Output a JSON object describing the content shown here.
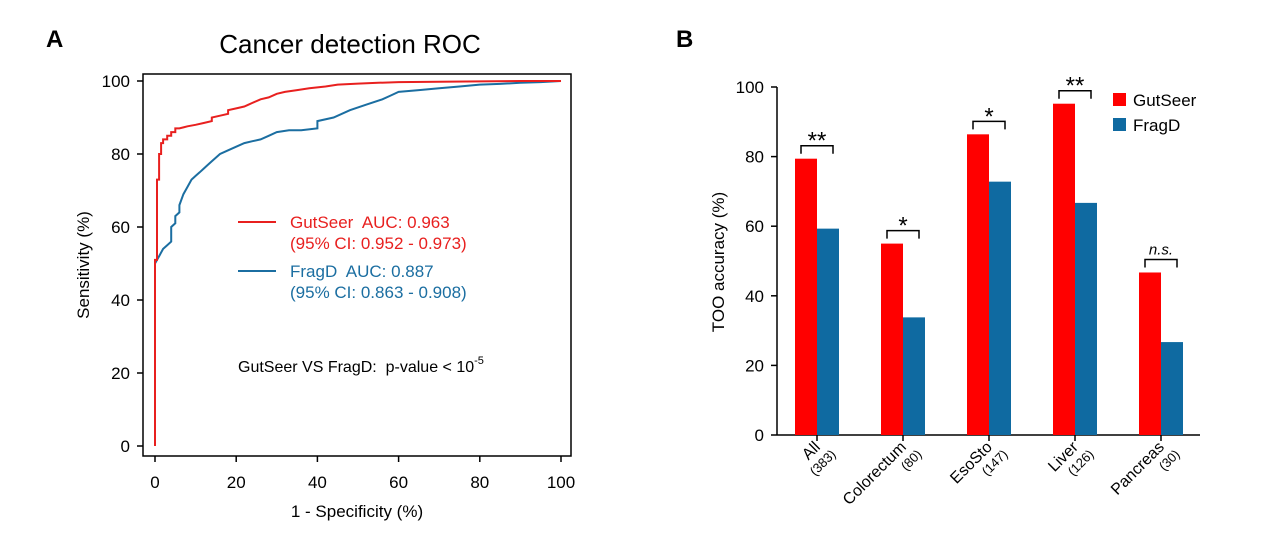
{
  "panels": {
    "a_letter": "A",
    "b_letter": "B"
  },
  "chart_data": [
    {
      "type": "line",
      "title": "Cancer detection ROC",
      "xlabel": "1 - Specificity (%)",
      "ylabel": "Sensitivity (%)",
      "xlim": [
        0,
        100
      ],
      "ylim": [
        0,
        100
      ],
      "xticks": [
        "0",
        "20",
        "40",
        "60",
        "80",
        "100"
      ],
      "yticks": [
        "0",
        "20",
        "40",
        "60",
        "80",
        "100"
      ],
      "grid": false,
      "series": [
        {
          "name": "GutSeer",
          "color": "#e8201f",
          "legend_label": "GutSeer  AUC: 0.963",
          "legend_ci": "(95% CI: 0.952 - 0.973)",
          "x": [
            0,
            0,
            0.5,
            0.5,
            1,
            1,
            1.5,
            1.5,
            2,
            2,
            3,
            3,
            4,
            4,
            5,
            5,
            6,
            7,
            8,
            10,
            12,
            14,
            14,
            16,
            18,
            18,
            20,
            22,
            23,
            24,
            26,
            28,
            30,
            32,
            35,
            38,
            42,
            45,
            50,
            55,
            60,
            70,
            80,
            90,
            100
          ],
          "y": [
            0,
            51,
            51,
            73,
            73,
            80,
            80,
            83,
            83,
            84,
            84,
            85,
            85,
            86,
            86,
            87,
            87,
            87.3,
            87.6,
            88,
            88.5,
            89,
            90,
            90.5,
            91,
            92,
            92.5,
            93,
            93.5,
            94,
            95,
            95.5,
            96.5,
            97,
            97.5,
            98,
            98.5,
            99,
            99.3,
            99.5,
            99.7,
            99.8,
            99.9,
            100,
            100
          ]
        },
        {
          "name": "FragD",
          "color": "#1b6ea1",
          "legend_label": "FragD  AUC: 0.887",
          "legend_ci": "(95% CI: 0.863 - 0.908)",
          "x": [
            0,
            0,
            0.5,
            1,
            2,
            3,
            4,
            4,
            5,
            5,
            6,
            6,
            7,
            8,
            9,
            10,
            11,
            12,
            13,
            14,
            15,
            16,
            18,
            20,
            22,
            24,
            26,
            28,
            30,
            33,
            36,
            40,
            40,
            44,
            48,
            52,
            56,
            58,
            60,
            65,
            70,
            75,
            80,
            85,
            90,
            95,
            100
          ],
          "y": [
            0,
            50,
            51,
            52,
            54,
            55,
            56,
            60,
            61,
            63,
            64,
            66,
            69,
            71,
            73,
            74,
            75,
            76,
            77,
            78,
            79,
            80,
            81,
            82,
            83,
            83.5,
            84,
            85,
            86,
            86.5,
            86.5,
            87,
            89,
            90,
            92,
            93.5,
            95,
            96,
            97,
            97.5,
            98,
            98.5,
            99,
            99.2,
            99.5,
            99.7,
            100
          ]
        }
      ],
      "annotation": {
        "text": "GutSeer VS FragD:  p-value < 10",
        "superscript": "-5"
      }
    },
    {
      "type": "bar",
      "xlabel": "",
      "ylabel": "TOO accuracy (%)",
      "ylim": [
        0,
        100
      ],
      "yticks": [
        "0",
        "20",
        "40",
        "60",
        "80",
        "100"
      ],
      "grid": false,
      "legend_position": "top-right",
      "categories": [
        "All",
        "Colorectum",
        "EsoSto",
        "Liver",
        "Pancreas"
      ],
      "category_counts": [
        "(383)",
        "(80)",
        "(147)",
        "(126)",
        "(30)"
      ],
      "series": [
        {
          "name": "GutSeer",
          "color": "#ff0000",
          "values": [
            79.4,
            55,
            86.4,
            95.2,
            46.7
          ]
        },
        {
          "name": "FragD",
          "color": "#0f6aa1",
          "values": [
            59.3,
            33.8,
            72.8,
            66.7,
            26.7
          ]
        }
      ],
      "significance": [
        "**",
        "*",
        "*",
        "**",
        "n.s."
      ]
    }
  ]
}
